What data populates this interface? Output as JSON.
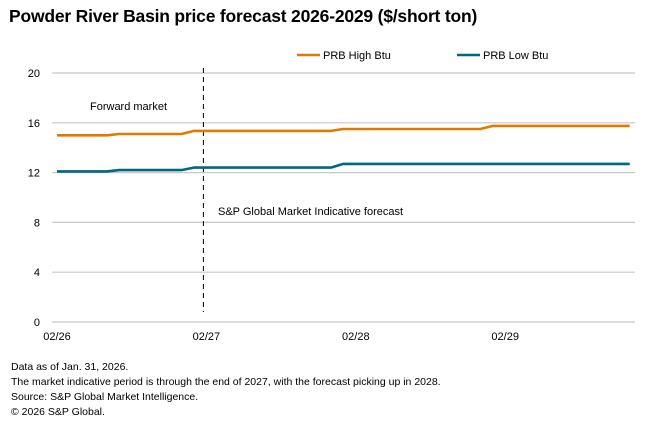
{
  "title": "Powder River Basin price forecast 2026-2029 ($/short ton)",
  "chart_data": {
    "type": "line",
    "title": "Powder River Basin price forecast 2026-2029 ($/short ton)",
    "xlabel": "",
    "ylabel": "",
    "ylim": [
      0,
      20
    ],
    "yticks": [
      0,
      4,
      8,
      12,
      16,
      20
    ],
    "xtick_labels": [
      {
        "x": "2026-02",
        "label": "02/26"
      },
      {
        "x": "2027-02",
        "label": "02/27"
      },
      {
        "x": "2028-02",
        "label": "02/28"
      },
      {
        "x": "2029-02",
        "label": "02/29"
      }
    ],
    "grid": "horizontal",
    "legend": "top-right",
    "x": [
      "2026-02",
      "2026-03",
      "2026-04",
      "2026-05",
      "2026-06",
      "2026-07",
      "2026-08",
      "2026-09",
      "2026-10",
      "2026-11",
      "2026-12",
      "2027-01",
      "2027-02",
      "2027-03",
      "2027-04",
      "2027-05",
      "2027-06",
      "2027-07",
      "2027-08",
      "2027-09",
      "2027-10",
      "2027-11",
      "2027-12",
      "2028-01",
      "2028-02",
      "2028-03",
      "2028-04",
      "2028-05",
      "2028-06",
      "2028-07",
      "2028-08",
      "2028-09",
      "2028-10",
      "2028-11",
      "2028-12",
      "2029-01",
      "2029-02",
      "2029-03",
      "2029-04",
      "2029-05",
      "2029-06",
      "2029-07",
      "2029-08",
      "2029-09",
      "2029-10",
      "2029-11",
      "2029-12"
    ],
    "series": [
      {
        "name": "PRB High Btu",
        "color": "#e07b00",
        "values": [
          15.0,
          15.0,
          15.0,
          15.0,
          15.0,
          15.1,
          15.1,
          15.1,
          15.1,
          15.1,
          15.1,
          15.35,
          15.35,
          15.35,
          15.35,
          15.35,
          15.35,
          15.35,
          15.35,
          15.35,
          15.35,
          15.35,
          15.35,
          15.5,
          15.5,
          15.5,
          15.5,
          15.5,
          15.5,
          15.5,
          15.5,
          15.5,
          15.5,
          15.5,
          15.5,
          15.75,
          15.75,
          15.75,
          15.75,
          15.75,
          15.75,
          15.75,
          15.75,
          15.75,
          15.75,
          15.75,
          15.75
        ]
      },
      {
        "name": "PRB Low Btu",
        "color": "#00677f",
        "values": [
          12.1,
          12.1,
          12.1,
          12.1,
          12.1,
          12.2,
          12.2,
          12.2,
          12.2,
          12.2,
          12.2,
          12.4,
          12.4,
          12.4,
          12.4,
          12.4,
          12.4,
          12.4,
          12.4,
          12.4,
          12.4,
          12.4,
          12.4,
          12.7,
          12.7,
          12.7,
          12.7,
          12.7,
          12.7,
          12.7,
          12.7,
          12.7,
          12.7,
          12.7,
          12.7,
          12.7,
          12.7,
          12.7,
          12.7,
          12.7,
          12.7,
          12.7,
          12.7,
          12.7,
          12.7,
          12.7,
          12.7
        ]
      }
    ],
    "divider": {
      "x": "2027-02",
      "style": "dashed"
    },
    "annotations": [
      "Forward market",
      "S&P Global Market Indicative forecast"
    ]
  },
  "footnotes": [
    "Data as of Jan. 31, 2026.",
    "The market indicative period is through the end of 2027, with the forecast picking up in 2028.",
    "Source: S&P Global Market Intelligence.",
    "© 2026 S&P Global."
  ]
}
